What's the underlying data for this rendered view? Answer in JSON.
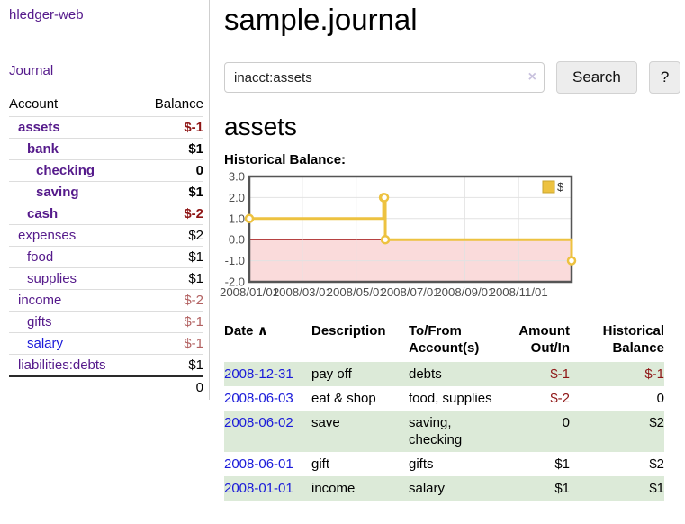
{
  "colors": {
    "link_purple": "#551a8b",
    "link_blue": "#1a1ad9",
    "negative_strong": "#8e1515",
    "negative_soft": "#b26161",
    "row_highlight_green": "#dcead8",
    "chart_gold": "#edc240",
    "chart_negative_fill": "#fadbdb",
    "chart_zero_line": "#a01010",
    "chart_border": "#555555",
    "chart_grid": "#e2e2e2",
    "axis_text": "#4d4d4d"
  },
  "sidebar": {
    "brand": "hledger-web",
    "nav_journal": "Journal",
    "accounts_table": {
      "headers": {
        "account": "Account",
        "balance": "Balance"
      },
      "rows": [
        {
          "name": "assets",
          "indent": 1,
          "bold": true,
          "link": "purple",
          "balance": "$-1",
          "balance_style": "neg-strong"
        },
        {
          "name": "bank",
          "indent": 2,
          "bold": true,
          "link": "purple",
          "balance": "$1",
          "balance_style": "strong"
        },
        {
          "name": "checking",
          "indent": 3,
          "bold": true,
          "link": "purple",
          "balance": "0",
          "balance_style": "strong"
        },
        {
          "name": "saving",
          "indent": 3,
          "bold": true,
          "link": "purple",
          "balance": "$1",
          "balance_style": "strong"
        },
        {
          "name": "cash",
          "indent": 2,
          "bold": true,
          "link": "purple",
          "balance": "$-2",
          "balance_style": "neg-strong"
        },
        {
          "name": "expenses",
          "indent": 1,
          "bold": false,
          "link": "purple",
          "balance": "$2",
          "balance_style": "plain"
        },
        {
          "name": "food",
          "indent": 2,
          "bold": false,
          "link": "purple",
          "balance": "$1",
          "balance_style": "plain"
        },
        {
          "name": "supplies",
          "indent": 2,
          "bold": false,
          "link": "purple",
          "balance": "$1",
          "balance_style": "plain"
        },
        {
          "name": "income",
          "indent": 1,
          "bold": false,
          "link": "purple",
          "balance": "$-2",
          "balance_style": "neg-soft"
        },
        {
          "name": "gifts",
          "indent": 2,
          "bold": false,
          "link": "purple",
          "balance": "$-1",
          "balance_style": "neg-soft"
        },
        {
          "name": "salary",
          "indent": 2,
          "bold": false,
          "link": "blue",
          "balance": "$-1",
          "balance_style": "neg-soft"
        },
        {
          "name": "liabilities:debts",
          "indent": 1,
          "bold": false,
          "link": "purple",
          "balance": "$1",
          "balance_style": "plain"
        }
      ],
      "total": "0"
    }
  },
  "main": {
    "title": "sample.journal",
    "search": {
      "value": "inacct:assets",
      "clear_icon": "×",
      "button_label": "Search",
      "help_label": "?"
    },
    "account_heading": "assets",
    "chart_heading": "Historical Balance:",
    "register": {
      "headers": {
        "date": "Date",
        "sort_icon": "∧",
        "description": "Description",
        "accounts": "To/From Account(s)",
        "amount": "Amount Out/In",
        "balance": "Historical Balance"
      },
      "rows": [
        {
          "date": "2008-12-31",
          "description": "pay off",
          "accounts": "debts",
          "amount": "$-1",
          "amount_neg": true,
          "balance": "$-1",
          "balance_neg": true,
          "highlight": true
        },
        {
          "date": "2008-06-03",
          "description": "eat & shop",
          "accounts": "food, supplies",
          "amount": "$-2",
          "amount_neg": true,
          "balance": "0",
          "balance_neg": false,
          "highlight": false
        },
        {
          "date": "2008-06-02",
          "description": "save",
          "accounts": "saving, checking",
          "amount": "0",
          "amount_neg": false,
          "balance": "$2",
          "balance_neg": false,
          "highlight": true
        },
        {
          "date": "2008-06-01",
          "description": "gift",
          "accounts": "gifts",
          "amount": "$1",
          "amount_neg": false,
          "balance": "$2",
          "balance_neg": false,
          "highlight": false
        },
        {
          "date": "2008-01-01",
          "description": "income",
          "accounts": "salary",
          "amount": "$1",
          "amount_neg": false,
          "balance": "$1",
          "balance_neg": false,
          "highlight": true
        }
      ]
    }
  },
  "chart_data": {
    "type": "line",
    "subtype": "step",
    "title": "Historical Balance:",
    "series": [
      {
        "name": "$",
        "color": "#edc240",
        "points": [
          [
            "2008-01-01",
            1
          ],
          [
            "2008-06-01",
            2
          ],
          [
            "2008-06-02",
            2
          ],
          [
            "2008-06-03",
            0
          ],
          [
            "2008-12-31",
            -1
          ]
        ]
      }
    ],
    "x_range": [
      "2008-01-01",
      "2008-12-31"
    ],
    "ylim": [
      -2,
      3
    ],
    "yticks": [
      "3.0",
      "2.0",
      "1.0",
      "0.0",
      "-1.0",
      "-2.0"
    ],
    "xticks": [
      "2008/01/01",
      "2008/03/01",
      "2008/05/01",
      "2008/07/01",
      "2008/09/01",
      "2008/11/01"
    ],
    "legend": {
      "label": "$",
      "position": "top-right"
    },
    "grid": true,
    "negative_region_fill": true
  }
}
